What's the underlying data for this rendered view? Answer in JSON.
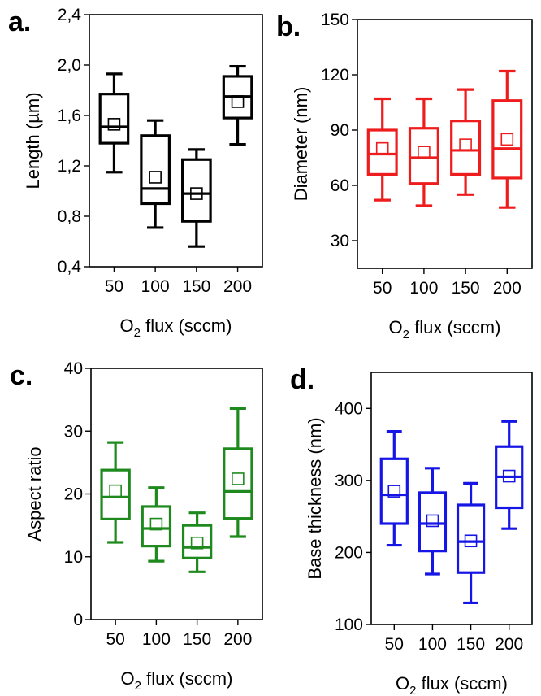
{
  "chart_data": [
    {
      "type": "box",
      "panel_label": "a.",
      "color": "#000000",
      "ylabel": "Length (µm)",
      "xlabel": {
        "main": "O",
        "subscript": "2",
        "rest": " flux (sccm)"
      },
      "categories": [
        "50",
        "100",
        "150",
        "200"
      ],
      "ylim": [
        0.4,
        2.4
      ],
      "yticks": [
        0.4,
        0.8,
        1.2,
        1.6,
        2.0,
        2.4
      ],
      "ytick_labels": [
        "0,4",
        "0,8",
        "1,2",
        "1,6",
        "2,0",
        "2,4"
      ],
      "boxes": [
        {
          "whisker_low": 1.15,
          "q1": 1.38,
          "median": 1.51,
          "q3": 1.77,
          "whisker_high": 1.93,
          "mean": 1.53
        },
        {
          "whisker_low": 0.71,
          "q1": 0.9,
          "median": 1.02,
          "q3": 1.44,
          "whisker_high": 1.56,
          "mean": 1.11
        },
        {
          "whisker_low": 0.56,
          "q1": 0.76,
          "median": 0.98,
          "q3": 1.25,
          "whisker_high": 1.33,
          "mean": 0.98
        },
        {
          "whisker_low": 1.37,
          "q1": 1.58,
          "median": 1.75,
          "q3": 1.91,
          "whisker_high": 1.99,
          "mean": 1.71
        }
      ]
    },
    {
      "type": "box",
      "panel_label": "b.",
      "color": "#ee1c1c",
      "ylabel": "Diameter (nm)",
      "xlabel": {
        "main": "O",
        "subscript": "2",
        "rest": " flux (sccm)"
      },
      "categories": [
        "50",
        "100",
        "150",
        "200"
      ],
      "ylim": [
        15,
        150
      ],
      "yticks": [
        30,
        60,
        90,
        120,
        150
      ],
      "ytick_labels": [
        "30",
        "60",
        "90",
        "120",
        "150"
      ],
      "boxes": [
        {
          "whisker_low": 52,
          "q1": 66,
          "median": 77,
          "q3": 90,
          "whisker_high": 107,
          "mean": 80
        },
        {
          "whisker_low": 49,
          "q1": 61,
          "median": 75,
          "q3": 91,
          "whisker_high": 107,
          "mean": 78
        },
        {
          "whisker_low": 55,
          "q1": 66,
          "median": 79,
          "q3": 95,
          "whisker_high": 112,
          "mean": 82
        },
        {
          "whisker_low": 48,
          "q1": 64,
          "median": 80,
          "q3": 106,
          "whisker_high": 122,
          "mean": 85
        }
      ]
    },
    {
      "type": "box",
      "panel_label": "c.",
      "color": "#1e8a1e",
      "ylabel": "Aspect ratio",
      "xlabel": {
        "main": "O",
        "subscript": "2",
        "rest": " flux (sccm)"
      },
      "categories": [
        "50",
        "100",
        "150",
        "200"
      ],
      "ylim": [
        0,
        40
      ],
      "yticks": [
        0,
        10,
        20,
        30,
        40
      ],
      "ytick_labels": [
        "0",
        "10",
        "20",
        "30",
        "40"
      ],
      "boxes": [
        {
          "whisker_low": 12.3,
          "q1": 16.0,
          "median": 19.5,
          "q3": 23.8,
          "whisker_high": 28.2,
          "mean": 20.5
        },
        {
          "whisker_low": 9.3,
          "q1": 11.7,
          "median": 14.5,
          "q3": 18.0,
          "whisker_high": 21.0,
          "mean": 15.2
        },
        {
          "whisker_low": 7.6,
          "q1": 9.8,
          "median": 11.5,
          "q3": 15.0,
          "whisker_high": 17.0,
          "mean": 12.2
        },
        {
          "whisker_low": 13.2,
          "q1": 16.1,
          "median": 20.4,
          "q3": 27.2,
          "whisker_high": 33.6,
          "mean": 22.4
        }
      ]
    },
    {
      "type": "box",
      "panel_label": "d.",
      "color": "#1515e6",
      "ylabel": "Base thickness (nm)",
      "xlabel": {
        "main": "O",
        "subscript": "2",
        "rest": " flux (sccm)"
      },
      "categories": [
        "50",
        "100",
        "150",
        "200"
      ],
      "ylim": [
        100,
        450
      ],
      "yticks": [
        100,
        200,
        300,
        400
      ],
      "ytick_labels": [
        "100",
        "200",
        "300",
        "400"
      ],
      "boxes": [
        {
          "whisker_low": 210,
          "q1": 240,
          "median": 280,
          "q3": 330,
          "whisker_high": 368,
          "mean": 285
        },
        {
          "whisker_low": 170,
          "q1": 202,
          "median": 240,
          "q3": 283,
          "whisker_high": 317,
          "mean": 244
        },
        {
          "whisker_low": 130,
          "q1": 172,
          "median": 215,
          "q3": 266,
          "whisker_high": 296,
          "mean": 216
        },
        {
          "whisker_low": 233,
          "q1": 262,
          "median": 305,
          "q3": 347,
          "whisker_high": 382,
          "mean": 306
        }
      ]
    }
  ]
}
